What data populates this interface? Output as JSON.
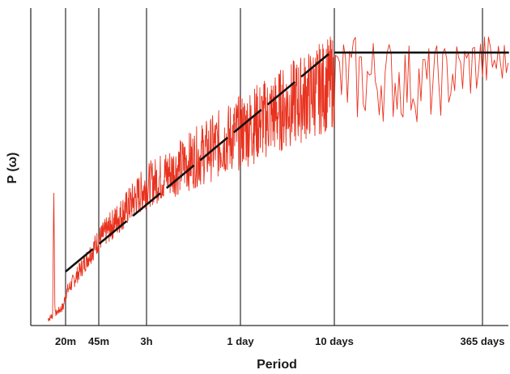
{
  "chart_data": {
    "type": "line",
    "title": "",
    "xlabel": "Period",
    "ylabel": "P (ω)",
    "x_scale": "log",
    "x_unit": "minutes",
    "x_direction": "period decreasing to the right",
    "x_ticks": [
      {
        "label": "20m",
        "value": 20
      },
      {
        "label": "45m",
        "value": 45
      },
      {
        "label": "3h",
        "value": 180
      },
      {
        "label": "1 day",
        "value": 1440
      },
      {
        "label": "10 days",
        "value": 14400
      },
      {
        "label": "365 days",
        "value": 525600
      }
    ],
    "y_ticks": [],
    "grid": "vertical lines at x ticks",
    "series": [
      {
        "color": "#e8321e",
        "style": "noisy spectrum",
        "envelope_points": [
          {
            "x": 13,
            "y_center": 0.02,
            "spread": 0.01
          },
          {
            "x": 16,
            "y_center": 0.04,
            "spread": 0.01
          },
          {
            "x": 19,
            "y_center": 0.06,
            "spread": 0.015
          },
          {
            "x": 20,
            "y_center": 0.1,
            "spread": 0.02
          },
          {
            "x": 45,
            "y_center": 0.27,
            "spread": 0.04
          },
          {
            "x": 180,
            "y_center": 0.44,
            "spread": 0.07
          },
          {
            "x": 1440,
            "y_center": 0.61,
            "spread": 0.12
          },
          {
            "x": 14400,
            "y_center": 0.77,
            "spread": 0.15
          },
          {
            "x": 40000,
            "y_center": 0.78,
            "spread": 0.14
          },
          {
            "x": 150000,
            "y_center": 0.76,
            "spread": 0.12
          },
          {
            "x": 525600,
            "y_center": 0.83,
            "spread": 0.1
          },
          {
            "x": 1000000,
            "y_center": 0.83,
            "spread": 0.06
          }
        ],
        "peaks": [
          {
            "x": 15,
            "y": 0.44
          }
        ]
      },
      {
        "color": "#111111",
        "style": "dashed fit line",
        "segments": [
          {
            "from": {
              "x": 20,
              "y": 0.17
            },
            "to": {
              "x": 14400,
              "y": 0.87
            }
          },
          {
            "from": {
              "x": 14400,
              "y": 0.86
            },
            "to": {
              "x": 1000000,
              "y": 0.86
            }
          }
        ]
      }
    ]
  }
}
